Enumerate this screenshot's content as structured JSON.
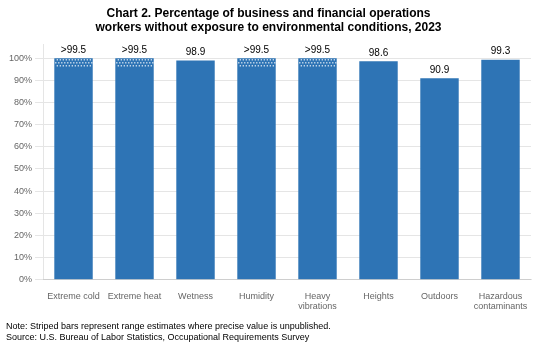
{
  "chart_data": {
    "type": "bar",
    "title": "Chart 2. Percentage of business and financial operations\nworkers without exposure to environmental conditions, 2023",
    "categories": [
      "Extreme cold",
      "Extreme heat",
      "Wetness",
      "Humidity",
      "Heavy\nvibrations",
      "Heights",
      "Outdoors",
      "Hazardous\ncontaminants"
    ],
    "values": [
      99.9,
      99.9,
      98.9,
      99.9,
      99.9,
      98.6,
      90.9,
      99.3
    ],
    "value_labels": [
      ">99.5",
      ">99.5",
      "98.9",
      ">99.5",
      ">99.5",
      "98.6",
      "90.9",
      "99.3"
    ],
    "striped": [
      true,
      true,
      false,
      true,
      true,
      false,
      false,
      false
    ],
    "color": "#2E74B5",
    "ylim": [
      0,
      106
    ],
    "yticks": [
      {
        "value": 0,
        "label": "0%"
      },
      {
        "value": 10,
        "label": "10%"
      },
      {
        "value": 20,
        "label": "20%"
      },
      {
        "value": 30,
        "label": "30%"
      },
      {
        "value": 40,
        "label": "40%"
      },
      {
        "value": 50,
        "label": "50%"
      },
      {
        "value": 60,
        "label": "60%"
      },
      {
        "value": 70,
        "label": "70%"
      },
      {
        "value": 80,
        "label": "80%"
      },
      {
        "value": 90,
        "label": "90%"
      },
      {
        "value": 100,
        "label": "100%"
      }
    ],
    "grid": true,
    "data_labels": true,
    "annotations": [
      "Note: Striped bars represent range estimates where precise value is unpublished.",
      "Source: U.S. Bureau of Labor Statistics, Occupational Requirements Survey"
    ]
  }
}
